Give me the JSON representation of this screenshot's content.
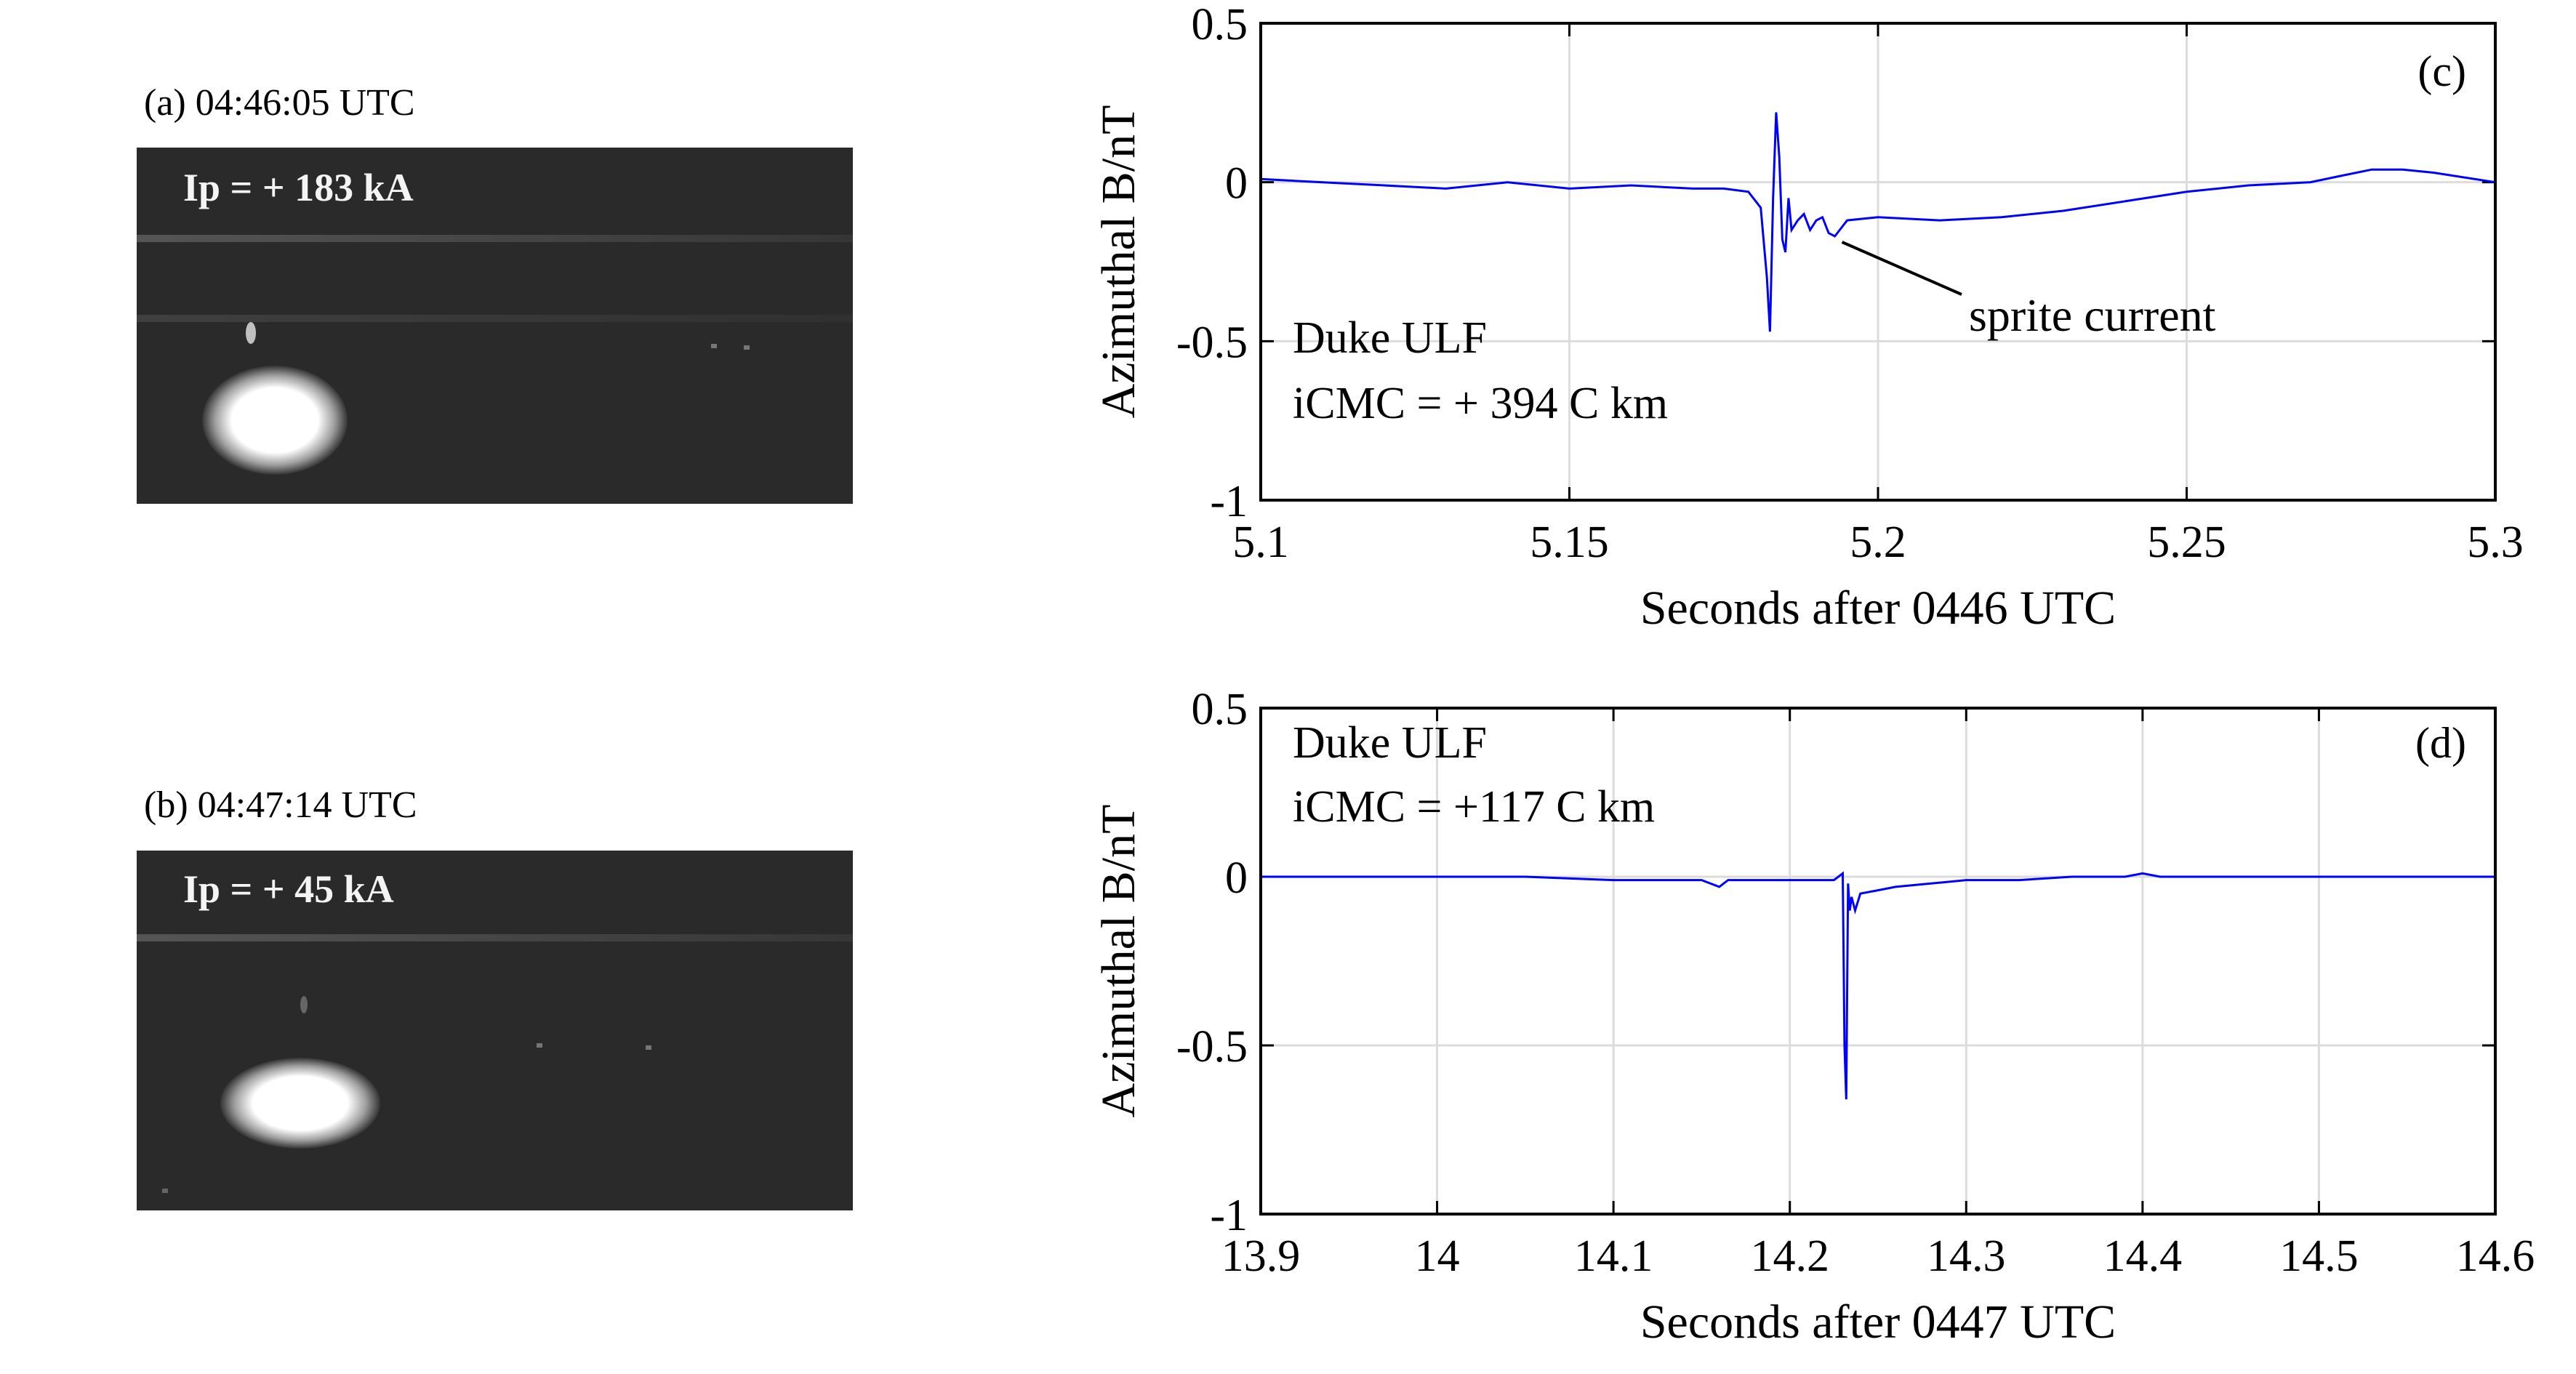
{
  "photos": [
    {
      "caption": "(a)  04:46:05 UTC",
      "ip": "Ip = + 183 kA"
    },
    {
      "caption": "(b)  04:47:14 UTC",
      "ip": "Ip = + 45 kA"
    }
  ],
  "chart_data": [
    {
      "type": "line",
      "panel": "(c)",
      "xlabel": "Seconds after 0446 UTC",
      "ylabel": "Azimuthal B/nT",
      "xlim": [
        5.1,
        5.3
      ],
      "ylim": [
        -1,
        0.5
      ],
      "xticks": [
        5.1,
        5.15,
        5.2,
        5.25,
        5.3
      ],
      "xtick_labels": [
        "5.1",
        "5.15",
        "5.2",
        "5.25",
        "5.3"
      ],
      "yticks": [
        -1,
        -0.5,
        0,
        0.5
      ],
      "ytick_labels": [
        "-1",
        "-0.5",
        "0",
        "0.5"
      ],
      "grid": true,
      "annotations": [
        "Duke ULF",
        "iCMC = + 394 C km"
      ],
      "callout": {
        "text": "sprite current",
        "x": 5.193,
        "y": -0.17
      },
      "line_color": "#0000ff",
      "series": [
        {
          "x": [
            5.1,
            5.11,
            5.12,
            5.13,
            5.14,
            5.15,
            5.16,
            5.17,
            5.175,
            5.179,
            5.181,
            5.182,
            5.1825,
            5.183,
            5.1835,
            5.184,
            5.1845,
            5.185,
            5.1855,
            5.186,
            5.187,
            5.188,
            5.189,
            5.19,
            5.191,
            5.192,
            5.193,
            5.195,
            5.2,
            5.21,
            5.22,
            5.23,
            5.24,
            5.25,
            5.26,
            5.27,
            5.275,
            5.28,
            5.285,
            5.29,
            5.3
          ],
          "y": [
            0.01,
            0.0,
            -0.01,
            -0.02,
            0.0,
            -0.02,
            -0.01,
            -0.02,
            -0.02,
            -0.03,
            -0.08,
            -0.3,
            -0.47,
            -0.05,
            0.22,
            0.08,
            -0.18,
            -0.22,
            -0.05,
            -0.15,
            -0.12,
            -0.1,
            -0.15,
            -0.12,
            -0.11,
            -0.16,
            -0.17,
            -0.12,
            -0.11,
            -0.12,
            -0.11,
            -0.09,
            -0.06,
            -0.03,
            -0.01,
            0.0,
            0.02,
            0.04,
            0.04,
            0.03,
            0.0
          ]
        }
      ]
    },
    {
      "type": "line",
      "panel": "(d)",
      "xlabel": "Seconds after 0447 UTC",
      "ylabel": "Azimuthal B/nT",
      "xlim": [
        13.9,
        14.6
      ],
      "ylim": [
        -1,
        0.5
      ],
      "xticks": [
        13.9,
        14.0,
        14.1,
        14.2,
        14.3,
        14.4,
        14.5,
        14.6
      ],
      "xtick_labels": [
        "13.9",
        "14",
        "14.1",
        "14.2",
        "14.3",
        "14.4",
        "14.5",
        "14.6"
      ],
      "yticks": [
        -1,
        -0.5,
        0,
        0.5
      ],
      "ytick_labels": [
        "-1",
        "-0.5",
        "0",
        "0.5"
      ],
      "grid": true,
      "annotations": [
        "Duke ULF",
        "iCMC = +117 C km"
      ],
      "line_color": "#0000ff",
      "series": [
        {
          "x": [
            13.9,
            13.95,
            14.0,
            14.05,
            14.1,
            14.15,
            14.16,
            14.165,
            14.2,
            14.225,
            14.23,
            14.231,
            14.232,
            14.233,
            14.234,
            14.235,
            14.237,
            14.24,
            14.25,
            14.26,
            14.28,
            14.3,
            14.33,
            14.36,
            14.39,
            14.4,
            14.41,
            14.45,
            14.5,
            14.55,
            14.6
          ],
          "y": [
            0.0,
            0.0,
            0.0,
            0.0,
            -0.01,
            -0.01,
            -0.03,
            -0.01,
            -0.01,
            -0.01,
            0.01,
            -0.5,
            -0.66,
            -0.02,
            -0.1,
            -0.06,
            -0.1,
            -0.05,
            -0.04,
            -0.03,
            -0.02,
            -0.01,
            -0.01,
            0.0,
            0.0,
            0.01,
            0.0,
            0.0,
            0.0,
            0.0,
            0.0
          ]
        }
      ]
    }
  ]
}
